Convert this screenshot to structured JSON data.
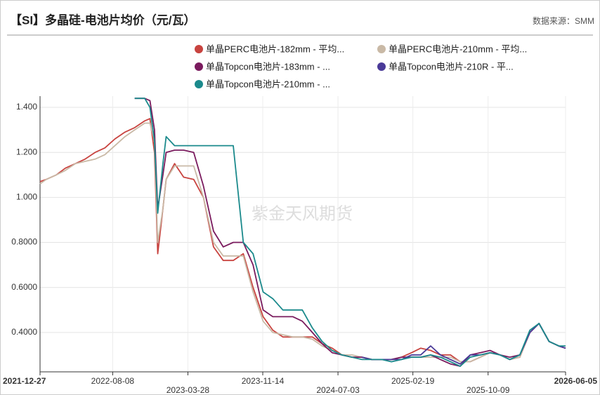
{
  "chart_data": {
    "type": "line",
    "title": "【SI】多晶硅-电池片均价（元/瓦）",
    "source": "数据来源：SMM",
    "watermark": "紫金天风期货",
    "x": [
      "2021-12-27",
      "2022-01-15",
      "2022-02-15",
      "2022-03-15",
      "2022-04-15",
      "2022-05-15",
      "2022-06-15",
      "2022-07-15",
      "2022-08-15",
      "2022-09-15",
      "2022-10-15",
      "2022-11-15",
      "2022-12-01",
      "2022-12-15",
      "2022-12-25",
      "2023-01-10",
      "2023-01-20",
      "2023-02-15",
      "2023-03-15",
      "2023-04-15",
      "2023-05-15",
      "2023-06-15",
      "2023-07-15",
      "2023-08-15",
      "2023-09-15",
      "2023-10-15",
      "2023-11-15",
      "2023-12-15",
      "2024-01-15",
      "2024-02-15",
      "2024-03-15",
      "2024-04-15",
      "2024-05-15",
      "2024-06-15",
      "2024-07-15",
      "2024-08-15",
      "2024-09-15",
      "2024-10-15",
      "2024-11-15",
      "2024-12-15",
      "2025-01-15",
      "2025-02-15",
      "2025-03-15",
      "2025-04-15",
      "2025-05-15",
      "2025-06-15",
      "2025-07-15",
      "2025-08-15",
      "2025-09-15",
      "2025-10-15",
      "2025-11-15",
      "2025-12-15",
      "2026-01-15",
      "2026-02-15",
      "2026-03-15",
      "2026-04-15",
      "2026-05-15",
      "2026-06-05"
    ],
    "series": [
      {
        "name": "单晶PERC电池片-182mm - 平均...",
        "color": "#c8433f",
        "values": [
          1.07,
          1.08,
          1.1,
          1.13,
          1.15,
          1.17,
          1.2,
          1.22,
          1.26,
          1.29,
          1.31,
          1.34,
          1.35,
          1.2,
          0.75,
          0.95,
          1.08,
          1.15,
          1.09,
          1.08,
          1.0,
          0.78,
          0.72,
          0.72,
          0.75,
          0.6,
          0.47,
          0.41,
          0.38,
          0.38,
          0.38,
          0.38,
          0.35,
          0.33,
          0.3,
          0.29,
          0.29,
          0.28,
          0.28,
          0.28,
          0.29,
          0.31,
          0.33,
          0.32,
          0.3,
          0.3,
          0.27,
          0.27,
          0.29,
          0.31,
          0.3,
          0.28,
          0.29,
          0.4,
          0.44,
          0.36,
          0.34,
          0.33
        ]
      },
      {
        "name": "单晶PERC电池片-210mm - 平均...",
        "color": "#c9b9a6",
        "values": [
          1.06,
          1.08,
          1.1,
          1.12,
          1.15,
          1.16,
          1.17,
          1.19,
          1.23,
          1.27,
          1.3,
          1.33,
          1.33,
          1.25,
          0.8,
          0.95,
          1.08,
          1.14,
          1.14,
          1.14,
          1.0,
          0.8,
          0.74,
          0.74,
          0.74,
          0.58,
          0.45,
          0.4,
          0.39,
          0.38,
          0.38,
          0.37,
          0.34,
          0.32,
          0.3,
          0.3,
          0.29,
          0.28,
          0.28,
          0.28,
          0.29,
          0.29,
          0.29,
          0.29,
          0.29,
          0.29,
          0.27,
          0.27,
          0.29,
          0.31,
          0.3,
          0.28,
          0.29,
          0.4,
          0.44,
          0.36,
          0.34,
          0.33
        ]
      },
      {
        "name": "单晶Topcon电池片-183mm - ...",
        "color": "#7a1b5e",
        "values": [
          null,
          null,
          null,
          null,
          null,
          null,
          null,
          null,
          null,
          null,
          1.44,
          1.44,
          1.43,
          1.3,
          0.95,
          1.1,
          1.2,
          1.21,
          1.21,
          1.2,
          1.05,
          0.85,
          0.78,
          0.8,
          0.8,
          0.7,
          0.5,
          0.47,
          0.47,
          0.47,
          0.45,
          0.4,
          0.35,
          0.31,
          0.3,
          0.29,
          0.29,
          0.28,
          0.28,
          0.28,
          0.29,
          0.29,
          0.29,
          0.3,
          0.28,
          0.26,
          0.25,
          0.3,
          0.31,
          0.32,
          0.3,
          0.29,
          0.3,
          0.4,
          0.44,
          0.36,
          0.34,
          0.33
        ]
      },
      {
        "name": "单晶Topcon电池片-210R - 平...",
        "color": "#4a3a98",
        "values": [
          null,
          null,
          null,
          null,
          null,
          null,
          null,
          null,
          null,
          null,
          null,
          null,
          null,
          null,
          null,
          null,
          null,
          null,
          null,
          null,
          null,
          null,
          null,
          null,
          null,
          null,
          null,
          null,
          null,
          null,
          null,
          null,
          null,
          null,
          null,
          null,
          0.29,
          0.28,
          0.28,
          0.28,
          0.28,
          0.3,
          0.3,
          0.34,
          0.3,
          0.28,
          0.26,
          0.3,
          0.3,
          0.31,
          0.3,
          0.28,
          0.3,
          0.4,
          0.44,
          0.36,
          0.34,
          0.33
        ]
      },
      {
        "name": "单晶Topcon电池片-210mm - ...",
        "color": "#1b8a8c",
        "values": [
          null,
          null,
          null,
          null,
          null,
          null,
          null,
          null,
          null,
          null,
          1.44,
          1.44,
          1.4,
          1.25,
          0.93,
          1.15,
          1.27,
          1.23,
          1.23,
          1.23,
          1.23,
          1.23,
          1.23,
          1.23,
          0.8,
          0.75,
          0.58,
          0.55,
          0.5,
          0.5,
          0.5,
          0.42,
          0.36,
          0.32,
          0.3,
          0.29,
          0.28,
          0.28,
          0.28,
          0.27,
          0.28,
          0.29,
          0.29,
          0.3,
          0.29,
          0.27,
          0.25,
          0.29,
          0.3,
          0.31,
          0.3,
          0.28,
          0.3,
          0.41,
          0.44,
          0.36,
          0.34,
          0.34
        ]
      }
    ],
    "xlim": [
      "2021-12-27",
      "2026-06-05"
    ],
    "xticks": [
      "2021-12-27",
      "2022-08-08",
      "2023-03-28",
      "2023-11-14",
      "2024-07-03",
      "2025-02-19",
      "2025-10-09",
      "2026-06-05"
    ],
    "ylim": [
      0.225,
      1.45
    ],
    "yticks": [
      {
        "value": 0.4,
        "label": "0.4000"
      },
      {
        "value": 0.6,
        "label": "0.6000"
      },
      {
        "value": 0.8,
        "label": "0.8000"
      },
      {
        "value": 1,
        "label": "1.000"
      },
      {
        "value": 1.2,
        "label": "1.200"
      },
      {
        "value": 1.4,
        "label": "1.400"
      }
    ],
    "grid": true
  }
}
